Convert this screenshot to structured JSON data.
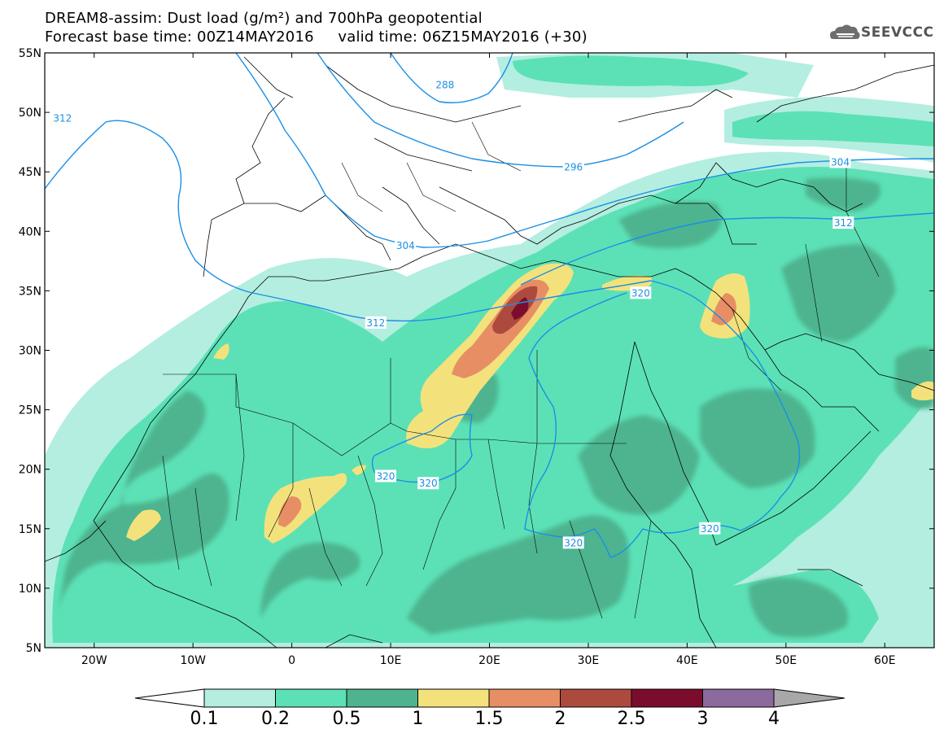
{
  "title": {
    "line1": "DREAM8-assim: Dust load (g/m²) and 700hPa geopotential",
    "line2": "Forecast base time: 00Z14MAY2016     valid time: 06Z15MAY2016 (+30)"
  },
  "logo": {
    "text": "SEEVCCC",
    "icon": "cloud-icon"
  },
  "map": {
    "lat_range": [
      5,
      55
    ],
    "lon_range": [
      -25,
      65
    ],
    "lat_ticks": [
      {
        "value": 55,
        "label": "55N"
      },
      {
        "value": 50,
        "label": "50N"
      },
      {
        "value": 45,
        "label": "45N"
      },
      {
        "value": 40,
        "label": "40N"
      },
      {
        "value": 35,
        "label": "35N"
      },
      {
        "value": 30,
        "label": "30N"
      },
      {
        "value": 25,
        "label": "25N"
      },
      {
        "value": 20,
        "label": "20N"
      },
      {
        "value": 15,
        "label": "15N"
      },
      {
        "value": 10,
        "label": "10N"
      },
      {
        "value": 5,
        "label": "5N"
      }
    ],
    "lon_ticks": [
      {
        "value": -20,
        "label": "20W"
      },
      {
        "value": -10,
        "label": "10W"
      },
      {
        "value": 0,
        "label": "0"
      },
      {
        "value": 10,
        "label": "10E"
      },
      {
        "value": 20,
        "label": "20E"
      },
      {
        "value": 30,
        "label": "30E"
      },
      {
        "value": 40,
        "label": "40E"
      },
      {
        "value": 50,
        "label": "50E"
      },
      {
        "value": 60,
        "label": "60E"
      }
    ],
    "contour_labels": [
      {
        "text": "312",
        "lon": -23.2,
        "lat": 49.5
      },
      {
        "text": "288",
        "lon": 15.5,
        "lat": 52.3
      },
      {
        "text": "296",
        "lon": 28.5,
        "lat": 45.4
      },
      {
        "text": "304",
        "lon": 55.5,
        "lat": 45.8
      },
      {
        "text": "304",
        "lon": 11.5,
        "lat": 38.8
      },
      {
        "text": "312",
        "lon": 8.5,
        "lat": 32.3
      },
      {
        "text": "312",
        "lon": 55.8,
        "lat": 40.7
      },
      {
        "text": "320",
        "lon": 35.3,
        "lat": 34.8
      },
      {
        "text": "320",
        "lon": 9.5,
        "lat": 19.4
      },
      {
        "text": "320",
        "lon": 13.8,
        "lat": 18.8
      },
      {
        "text": "320",
        "lon": 28.5,
        "lat": 13.8
      },
      {
        "text": "320",
        "lon": 42.3,
        "lat": 15.0
      }
    ]
  },
  "colorbar": {
    "levels": [
      {
        "label": "0.1",
        "color": "#b3eee1"
      },
      {
        "label": "0.2",
        "color": "#5ce1b6"
      },
      {
        "label": "0.5",
        "color": "#4db48f"
      },
      {
        "label": "1",
        "color": "#f3e27c"
      },
      {
        "label": "1.5",
        "color": "#e78e64"
      },
      {
        "label": "2",
        "color": "#ad4a3e"
      },
      {
        "label": "2.5",
        "color": "#7b0d2c"
      },
      {
        "label": "3",
        "color": "#8c6a9e"
      },
      {
        "label": "4",
        "color": "#a8a8a8"
      }
    ]
  }
}
